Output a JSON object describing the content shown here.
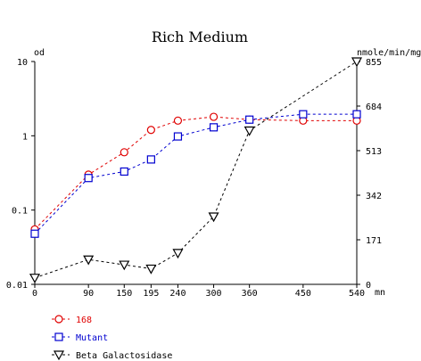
{
  "chart_data": {
    "type": "line",
    "title": "Rich Medium",
    "left_axis_label": "od",
    "right_axis_label": "nmole/min/mg",
    "x_unit_label": "mn",
    "x_ticks": [
      0,
      90,
      150,
      195,
      240,
      300,
      360,
      450,
      540
    ],
    "left_ticks": [
      "10",
      "1",
      "0.1",
      "0.01"
    ],
    "left_scale": "log",
    "left_range": [
      0.01,
      10
    ],
    "right_ticks": [
      "855",
      "684",
      "513",
      "342",
      "171",
      "0"
    ],
    "right_range": [
      0,
      855
    ],
    "xlim": [
      0,
      540
    ],
    "grid": false,
    "legend_position": "bottom-left",
    "series": [
      {
        "name": "168",
        "axis": "left",
        "marker": "circle",
        "color": "#e00000",
        "x": [
          0,
          90,
          150,
          195,
          240,
          300,
          360,
          450,
          540
        ],
        "y": [
          0.055,
          0.3,
          0.6,
          1.2,
          1.6,
          1.8,
          1.65,
          1.6,
          1.6
        ]
      },
      {
        "name": "Mutant",
        "axis": "left",
        "marker": "square",
        "color": "#0000d0",
        "x": [
          0,
          90,
          150,
          195,
          240,
          300,
          360,
          450,
          540
        ],
        "y": [
          0.048,
          0.27,
          0.33,
          0.48,
          0.98,
          1.3,
          1.65,
          1.95,
          1.95
        ]
      },
      {
        "name": "Beta Galactosidase",
        "axis": "right",
        "marker": "triangle-down",
        "color": "#000000",
        "x": [
          0,
          90,
          150,
          195,
          240,
          300,
          360,
          540
        ],
        "y": [
          25,
          95,
          75,
          60,
          120,
          260,
          590,
          855
        ]
      }
    ]
  }
}
